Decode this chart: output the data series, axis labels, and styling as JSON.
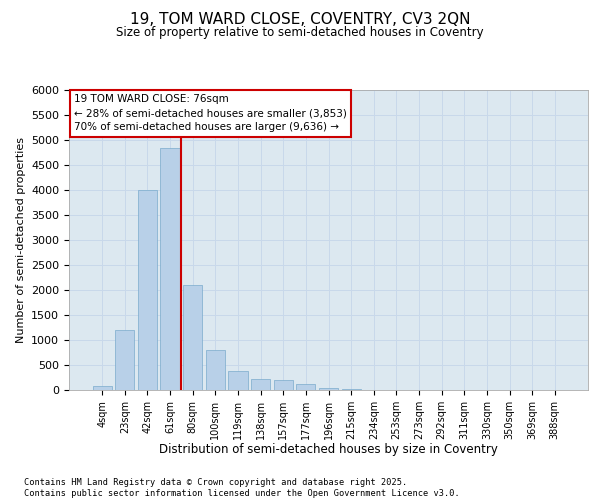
{
  "title": "19, TOM WARD CLOSE, COVENTRY, CV3 2QN",
  "subtitle": "Size of property relative to semi-detached houses in Coventry",
  "xlabel": "Distribution of semi-detached houses by size in Coventry",
  "ylabel": "Number of semi-detached properties",
  "categories": [
    "4sqm",
    "23sqm",
    "42sqm",
    "61sqm",
    "80sqm",
    "100sqm",
    "119sqm",
    "138sqm",
    "157sqm",
    "177sqm",
    "196sqm",
    "215sqm",
    "234sqm",
    "253sqm",
    "273sqm",
    "292sqm",
    "311sqm",
    "330sqm",
    "350sqm",
    "369sqm",
    "388sqm"
  ],
  "values": [
    80,
    1200,
    4000,
    4850,
    2100,
    800,
    380,
    230,
    200,
    120,
    50,
    20,
    8,
    5,
    3,
    2,
    1,
    1,
    0,
    0,
    0
  ],
  "bar_color": "#b8d0e8",
  "bar_edge_color": "#7aabcc",
  "vline_color": "#cc0000",
  "annotation_text": "19 TOM WARD CLOSE: 76sqm\n← 28% of semi-detached houses are smaller (3,853)\n70% of semi-detached houses are larger (9,636) →",
  "annotation_box_color": "#ffffff",
  "annotation_box_edge_color": "#cc0000",
  "ylim": [
    0,
    6000
  ],
  "yticks": [
    0,
    500,
    1000,
    1500,
    2000,
    2500,
    3000,
    3500,
    4000,
    4500,
    5000,
    5500,
    6000
  ],
  "grid_color": "#c8d8ea",
  "background_color": "#dce8f0",
  "footer_line1": "Contains HM Land Registry data © Crown copyright and database right 2025.",
  "footer_line2": "Contains public sector information licensed under the Open Government Licence v3.0."
}
